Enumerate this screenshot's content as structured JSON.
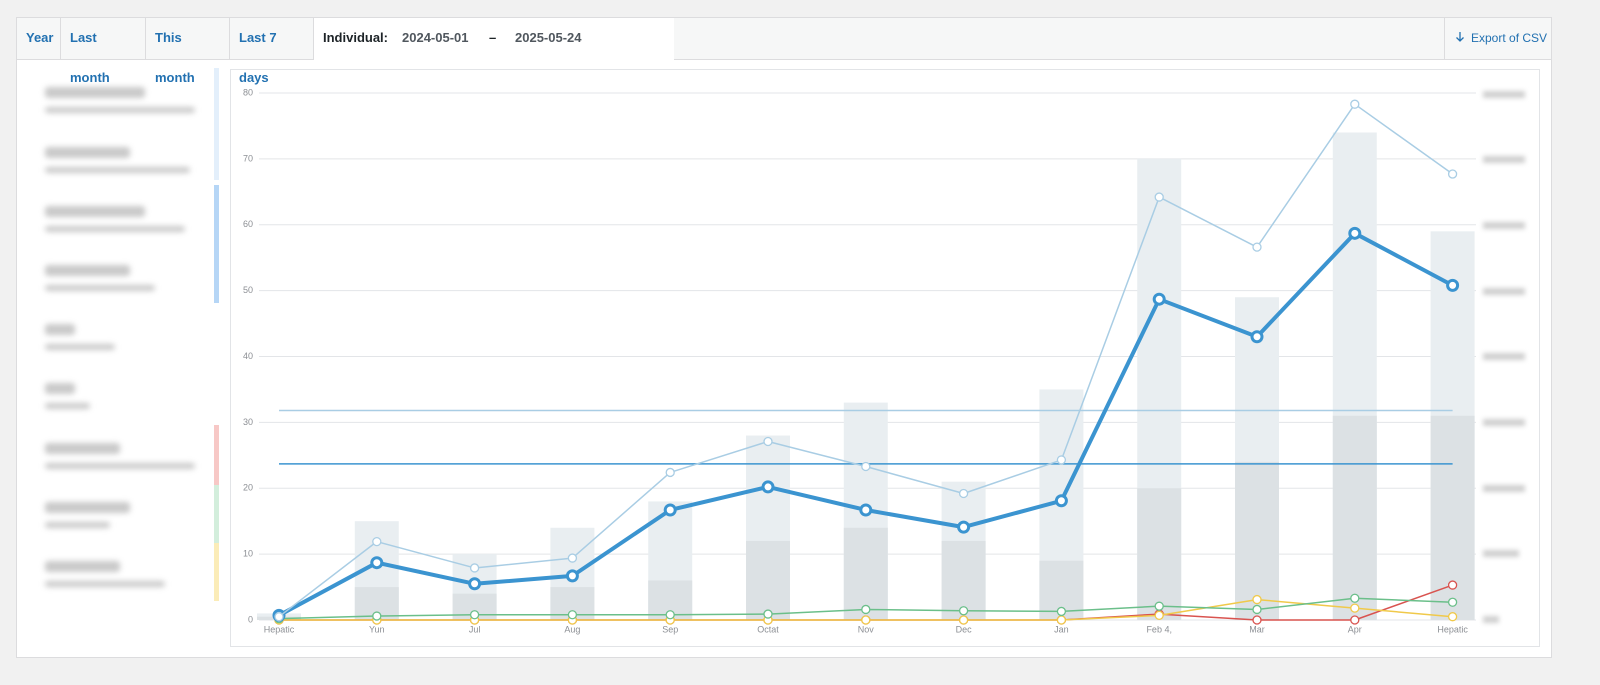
{
  "tabs": [
    "Year",
    "Last month",
    "This month",
    "Last 7 days"
  ],
  "custom_range": {
    "label": "Individual:",
    "start": "2024-05-01",
    "separator": "–",
    "end": "2025-05-24"
  },
  "export": "Export of CSV",
  "chart_data": {
    "type": "combo",
    "categories": [
      "Hepatic",
      "Yun",
      "Jul",
      "Aug",
      "Sep",
      "Octat",
      "Nov",
      "Dec",
      "Jan",
      "Feb 4,",
      "Mar",
      "Apr",
      "Hepatic"
    ],
    "ylim": [
      0,
      80
    ],
    "yticks": [
      0,
      10,
      20,
      30,
      40,
      50,
      60,
      70,
      80
    ],
    "grid": true,
    "series": [
      {
        "type": "bar",
        "color": "#e9eef1",
        "values": [
          1,
          15,
          10,
          14,
          18,
          28,
          33,
          21,
          35,
          70,
          49,
          74,
          59
        ]
      },
      {
        "type": "bar",
        "color": "#dce1e4",
        "values": [
          0.5,
          5,
          4,
          5,
          6,
          12,
          14,
          12,
          9,
          20,
          24,
          31,
          31
        ]
      },
      {
        "type": "line",
        "color": "#a9cde4",
        "width": 1.5,
        "values": [
          0.5,
          11.9,
          7.9,
          9.4,
          22.4,
          27.1,
          23.3,
          19.2,
          24.3,
          64.2,
          56.6,
          78.3,
          67.7
        ]
      },
      {
        "type": "line",
        "color": "#3b94d0",
        "width": 4,
        "values": [
          0.7,
          8.7,
          5.5,
          6.7,
          16.7,
          20.2,
          16.7,
          14.1,
          18.1,
          48.7,
          43.0,
          58.7,
          50.8
        ]
      },
      {
        "type": "line",
        "color": "#6bbf8a",
        "width": 1.5,
        "values": [
          0.2,
          0.6,
          0.8,
          0.8,
          0.8,
          0.9,
          1.6,
          1.4,
          1.3,
          2.1,
          1.6,
          3.3,
          2.7
        ]
      },
      {
        "type": "line",
        "color": "#f0c94a",
        "width": 1.5,
        "values": [
          0,
          0,
          0,
          0,
          0,
          0,
          0,
          0,
          0,
          0.7,
          3.1,
          1.8,
          0.5
        ]
      },
      {
        "type": "line",
        "color": "#d9534f",
        "width": 1.5,
        "values": [
          0,
          0,
          0,
          0,
          0,
          0,
          0,
          0,
          0,
          0.9,
          0,
          0,
          5.3
        ]
      }
    ],
    "reference_lines": [
      {
        "value": 31.8,
        "color": "#a9cde4"
      },
      {
        "value": 23.7,
        "color": "#3b94d0"
      }
    ]
  }
}
